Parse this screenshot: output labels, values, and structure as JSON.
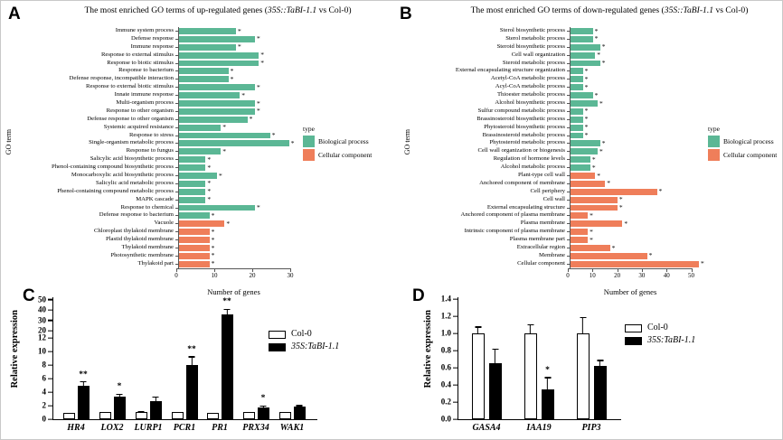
{
  "figure": {
    "panel_a": {
      "letter": "A",
      "title_prefix": "The most enriched GO terms of up-regulated genes (",
      "title_italic": "35S::TaBI-1.1",
      "title_suffix": " vs Col-0)",
      "xlabel": "Number of genes",
      "ylabel": "GO term",
      "legend_title": "type",
      "legend": [
        {
          "label": "Biological process",
          "color": "#5BB795"
        },
        {
          "label": "Cellular component",
          "color": "#EF7E5A"
        }
      ]
    },
    "panel_b": {
      "letter": "B",
      "title_prefix": "The most enriched GO terms of down-regulated genes (",
      "title_italic": "35S::TaBI-1.1",
      "title_suffix": " vs Col-0)",
      "xlabel": "Number of genes",
      "ylabel": "GO term",
      "legend_title": "type",
      "legend": [
        {
          "label": "Biological process",
          "color": "#5BB795"
        },
        {
          "label": "Cellular component",
          "color": "#EF7E5A"
        }
      ]
    },
    "panel_c": {
      "letter": "C",
      "ylabel": "Relative expression",
      "legend": [
        {
          "label": "Col-0"
        },
        {
          "label": "35S:TaBI-1.1"
        }
      ]
    },
    "panel_d": {
      "letter": "D",
      "ylabel": "Relative expression",
      "legend": [
        {
          "label": "Col-0"
        },
        {
          "label": "35S:TaBI-1.1"
        }
      ]
    }
  },
  "chart_data": [
    {
      "id": "A",
      "type": "bar",
      "orientation": "horizontal",
      "title": "The most enriched GO terms of up-regulated genes (35S::TaBI-1.1 vs Col-0)",
      "xlabel": "Number of genes",
      "ylabel": "GO term",
      "xlim": [
        0,
        30
      ],
      "x_ticks": [
        0,
        10,
        20,
        30
      ],
      "legend_title": "type",
      "legend": [
        "Biological process",
        "Cellular component"
      ],
      "bars": [
        {
          "term": "Immune system process",
          "value": 15,
          "type": "Biological process",
          "sig": "*"
        },
        {
          "term": "Defense response",
          "value": 20,
          "type": "Biological process",
          "sig": "*"
        },
        {
          "term": "Immune response",
          "value": 15,
          "type": "Biological process",
          "sig": "*"
        },
        {
          "term": "Response to external stimulus",
          "value": 21,
          "type": "Biological process",
          "sig": "*"
        },
        {
          "term": "Response to biotic stimulus",
          "value": 21,
          "type": "Biological process",
          "sig": "*"
        },
        {
          "term": "Response to bacterium",
          "value": 13,
          "type": "Biological process",
          "sig": "*"
        },
        {
          "term": "Defense response, incompatible interaction",
          "value": 13,
          "type": "Biological process",
          "sig": "*"
        },
        {
          "term": "Response to external biotic stimulus",
          "value": 20,
          "type": "Biological process",
          "sig": "*"
        },
        {
          "term": "Innate immune response",
          "value": 16,
          "type": "Biological process",
          "sig": "*"
        },
        {
          "term": "Multi-organism process",
          "value": 20,
          "type": "Biological process",
          "sig": "*"
        },
        {
          "term": "Response to other organism",
          "value": 20,
          "type": "Biological process",
          "sig": "*"
        },
        {
          "term": "Defense response to other organism",
          "value": 18,
          "type": "Biological process",
          "sig": "*"
        },
        {
          "term": "Systemic acquired resistance",
          "value": 11,
          "type": "Biological process",
          "sig": "*"
        },
        {
          "term": "Response to stress",
          "value": 24,
          "type": "Biological process",
          "sig": "*"
        },
        {
          "term": "Single-organism metabolic process",
          "value": 29,
          "type": "Biological process",
          "sig": "*"
        },
        {
          "term": "Response to fungus",
          "value": 11,
          "type": "Biological process",
          "sig": "*"
        },
        {
          "term": "Salicylic acid biosynthetic process",
          "value": 7,
          "type": "Biological process",
          "sig": "*"
        },
        {
          "term": "Phenol-containing compound biosynthetic process",
          "value": 7,
          "type": "Biological process",
          "sig": "*"
        },
        {
          "term": "Monocarboxylic acid biosynthetic process",
          "value": 10,
          "type": "Biological process",
          "sig": "*"
        },
        {
          "term": "Salicylic acid metabolic process",
          "value": 7,
          "type": "Biological process",
          "sig": "*"
        },
        {
          "term": "Phenol-containing compound metabolic process",
          "value": 7,
          "type": "Biological process",
          "sig": "*"
        },
        {
          "term": "MAPK cascade",
          "value": 7,
          "type": "Biological process",
          "sig": "*"
        },
        {
          "term": "Response to chemical",
          "value": 20,
          "type": "Biological process",
          "sig": "*"
        },
        {
          "term": "Defense response to bacterium",
          "value": 8,
          "type": "Biological process",
          "sig": "*"
        },
        {
          "term": "Vacuole",
          "value": 12,
          "type": "Cellular component",
          "sig": "*"
        },
        {
          "term": "Chloroplast thylakoid membrane",
          "value": 8,
          "type": "Cellular component",
          "sig": "*"
        },
        {
          "term": "Plastid thylakoid membrane",
          "value": 8,
          "type": "Cellular component",
          "sig": "*"
        },
        {
          "term": "Thylakoid membrane",
          "value": 8,
          "type": "Cellular component",
          "sig": "*"
        },
        {
          "term": "Photosynthetic membrane",
          "value": 8,
          "type": "Cellular component",
          "sig": "*"
        },
        {
          "term": "Thylakoid part",
          "value": 8,
          "type": "Cellular component",
          "sig": "*"
        }
      ]
    },
    {
      "id": "B",
      "type": "bar",
      "orientation": "horizontal",
      "title": "The most enriched GO terms of down-regulated genes (35S::TaBI-1.1 vs Col-0)",
      "xlabel": "Number of genes",
      "ylabel": "GO term",
      "xlim": [
        0,
        55
      ],
      "x_ticks": [
        0,
        10,
        20,
        30,
        40,
        50
      ],
      "legend_title": "type",
      "legend": [
        "Biological process",
        "Cellular component"
      ],
      "bars": [
        {
          "term": "Sterol biosynthetic process",
          "value": 9,
          "type": "Biological process",
          "sig": "*"
        },
        {
          "term": "Sterol metabolic process",
          "value": 9,
          "type": "Biological process",
          "sig": "*"
        },
        {
          "term": "Steroid biosynthetic process",
          "value": 12,
          "type": "Biological process",
          "sig": "*"
        },
        {
          "term": "Cell wall organization",
          "value": 10,
          "type": "Biological process",
          "sig": "*"
        },
        {
          "term": "Steroid metabolic process",
          "value": 12,
          "type": "Biological process",
          "sig": "*"
        },
        {
          "term": "External encapsulating structure organization",
          "value": 5,
          "type": "Biological process",
          "sig": "*"
        },
        {
          "term": "Acetyl-CoA metabolic process",
          "value": 5,
          "type": "Biological process",
          "sig": "*"
        },
        {
          "term": "Acyl-CoA metabolic process",
          "value": 5,
          "type": "Biological process",
          "sig": "*"
        },
        {
          "term": "Thioester metabolic process",
          "value": 9,
          "type": "Biological process",
          "sig": "*"
        },
        {
          "term": "Alcohol biosynthetic process",
          "value": 11,
          "type": "Biological process",
          "sig": "*"
        },
        {
          "term": "Sulfur compound metabolic process",
          "value": 5,
          "type": "Biological process",
          "sig": "*"
        },
        {
          "term": "Brassinosteroid biosynthetic process",
          "value": 5,
          "type": "Biological process",
          "sig": "*"
        },
        {
          "term": "Phytosteroid biosynthetic process",
          "value": 5,
          "type": "Biological process",
          "sig": "*"
        },
        {
          "term": "Brassinosteroid metabolic process",
          "value": 5,
          "type": "Biological process",
          "sig": "*"
        },
        {
          "term": "Phytosteroid metabolic process",
          "value": 12,
          "type": "Biological process",
          "sig": "*"
        },
        {
          "term": "Cell wall organization or biogenesis",
          "value": 11,
          "type": "Biological process",
          "sig": "*"
        },
        {
          "term": "Regulation of hormone levels",
          "value": 8,
          "type": "Biological process",
          "sig": "*"
        },
        {
          "term": "Alcohol metabolic process",
          "value": 8,
          "type": "Biological process",
          "sig": "*"
        },
        {
          "term": "Plant-type cell wall",
          "value": 10,
          "type": "Cellular component",
          "sig": "*"
        },
        {
          "term": "Anchored component of membrane",
          "value": 14,
          "type": "Cellular component",
          "sig": "*"
        },
        {
          "term": "Cell periphery",
          "value": 35,
          "type": "Cellular component",
          "sig": "*"
        },
        {
          "term": "Cell wall",
          "value": 19,
          "type": "Cellular component",
          "sig": "*"
        },
        {
          "term": "External encapsulating structure",
          "value": 19,
          "type": "Cellular component",
          "sig": "*"
        },
        {
          "term": "Anchored component of plasma membrane",
          "value": 7,
          "type": "Cellular component",
          "sig": "*"
        },
        {
          "term": "Plasma membrane",
          "value": 21,
          "type": "Cellular component",
          "sig": "*"
        },
        {
          "term": "Intrinsic component of plasma membrane",
          "value": 7,
          "type": "Cellular component",
          "sig": "*"
        },
        {
          "term": "Plasma membrane part",
          "value": 7,
          "type": "Cellular component",
          "sig": "*"
        },
        {
          "term": "Extracellular region",
          "value": 16,
          "type": "Cellular component",
          "sig": "*"
        },
        {
          "term": "Membrane",
          "value": 31,
          "type": "Cellular component",
          "sig": "*"
        },
        {
          "term": "Cellular component",
          "value": 52,
          "type": "Cellular component",
          "sig": "*"
        }
      ]
    },
    {
      "id": "C",
      "type": "grouped-bar",
      "ylabel": "Relative expression",
      "y_ticks": [
        0,
        2,
        4,
        6,
        8,
        10,
        12,
        20,
        30,
        40,
        50
      ],
      "axis_break_between": [
        12,
        20
      ],
      "categories": [
        "HR4",
        "LOX2",
        "LURP1",
        "PCR1",
        "PR1",
        "PRX34",
        "WAK1"
      ],
      "series": [
        {
          "name": "Col-0",
          "fill": "#FFFFFF",
          "values": [
            1.0,
            1.1,
            1.1,
            1.1,
            1.0,
            1.1,
            1.1
          ],
          "errors": [
            0.1,
            0.15,
            0.3,
            0.1,
            0.1,
            0.15,
            0.1
          ]
        },
        {
          "name": "35S:TaBI-1.1",
          "fill": "#000000",
          "values": [
            5.0,
            3.4,
            2.7,
            8.0,
            36,
            1.8,
            1.9
          ],
          "errors": [
            0.6,
            0.4,
            0.7,
            1.3,
            5,
            0.25,
            0.2
          ]
        }
      ],
      "significance": [
        "**",
        "*",
        "",
        "**",
        "**",
        "*",
        ""
      ]
    },
    {
      "id": "D",
      "type": "grouped-bar",
      "ylabel": "Relative expression",
      "y_ticks": [
        0,
        0.2,
        0.4,
        0.6,
        0.8,
        1.0,
        1.2,
        1.4
      ],
      "y_tick_labels": [
        "0.0",
        "0.2",
        "0.4",
        "0.6",
        "0.8",
        "1.0",
        "1.2",
        "1.4"
      ],
      "categories": [
        "GASA4",
        "IAA19",
        "PIP3"
      ],
      "series": [
        {
          "name": "Col-0",
          "fill": "#FFFFFF",
          "values": [
            1.0,
            1.0,
            1.0
          ],
          "errors": [
            0.09,
            0.12,
            0.2
          ]
        },
        {
          "name": "35S:TaBI-1.1",
          "fill": "#000000",
          "values": [
            0.65,
            0.35,
            0.62
          ],
          "errors": [
            0.17,
            0.14,
            0.07
          ]
        }
      ],
      "significance": [
        "",
        "*",
        ""
      ]
    }
  ]
}
